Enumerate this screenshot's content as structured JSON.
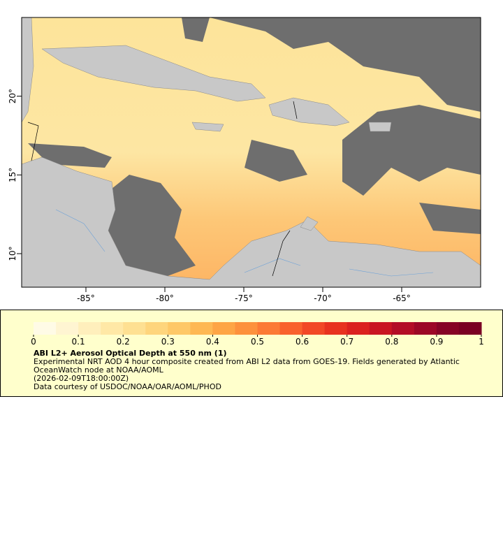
{
  "map": {
    "xlim": [
      -89.07,
      -60.0
    ],
    "ylim": [
      7.87,
      25.0
    ],
    "xticks": [
      {
        "value": -85,
        "label": "-85°"
      },
      {
        "value": -80,
        "label": "-80°"
      },
      {
        "value": -75,
        "label": "-75°"
      },
      {
        "value": -70,
        "label": "-70°"
      },
      {
        "value": -65,
        "label": "-65°"
      }
    ],
    "yticks": [
      {
        "value": 10,
        "label": "10°"
      },
      {
        "value": 15,
        "label": "15°"
      },
      {
        "value": 20,
        "label": "20°"
      }
    ]
  },
  "colorbar": {
    "lim": [
      0,
      1
    ],
    "ticks": [
      0,
      0.1,
      0.2,
      0.3,
      0.4,
      0.5,
      0.6,
      0.7,
      0.8,
      0.9,
      1
    ],
    "colors": [
      "#fffbe6",
      "#fff5d2",
      "#ffefbc",
      "#ffe8a6",
      "#fee092",
      "#fed57c",
      "#fec867",
      "#feb853",
      "#fea545",
      "#fd913c",
      "#fc7a35",
      "#f9612d",
      "#f24826",
      "#e8321f",
      "#db211f",
      "#c91522",
      "#b30d26",
      "#9c0726",
      "#860325",
      "#7a0023"
    ]
  },
  "legend": {
    "title": "ABI L2+ Aerosol Optical Depth at 550 nm (1)",
    "description": "Experimental NRT AOD 4 hour composite created from ABI L2 data from GOES-19. Fields generated by Atlantic OceanWatch node at NOAA/AOML",
    "time": "(2026-02-09T18:00:00Z)",
    "credit": "Data courtesy of USDOC/NOAA/OAR/AOML/PHOD"
  }
}
